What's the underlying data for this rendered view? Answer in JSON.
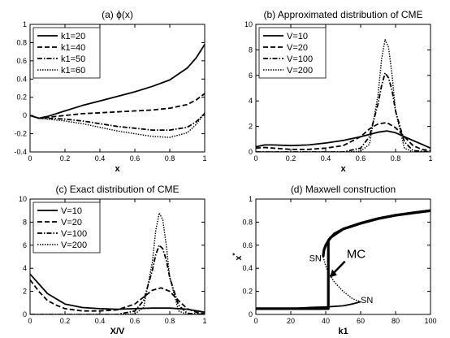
{
  "chart_data": [
    {
      "type": "line",
      "title": "(a)  ϕ(x)",
      "xlabel": "x",
      "ylabel": "",
      "xlim": [
        0,
        1
      ],
      "ylim": [
        -0.4,
        1
      ],
      "xticks": [
        "0",
        "0.2",
        "0.4",
        "0.6",
        "0.8",
        "1"
      ],
      "yticks": [
        "-0.4",
        "-0.2",
        "0",
        "0.2",
        "0.4",
        "0.6",
        "0.8",
        "1"
      ],
      "xtick_values": [
        0,
        0.2,
        0.4,
        0.6,
        0.8,
        1
      ],
      "ytick_values": [
        -0.4,
        -0.2,
        0,
        0.2,
        0.4,
        0.6,
        0.8,
        1
      ],
      "legend_position": "top-left",
      "series": [
        {
          "name": "k1=20",
          "style": "solid",
          "x": [
            0,
            0.05,
            0.1,
            0.2,
            0.3,
            0.4,
            0.5,
            0.6,
            0.7,
            0.8,
            0.9,
            0.95,
            1
          ],
          "y": [
            0,
            -0.03,
            -0.01,
            0.05,
            0.11,
            0.16,
            0.21,
            0.26,
            0.32,
            0.39,
            0.52,
            0.63,
            0.78
          ]
        },
        {
          "name": "k1=40",
          "style": "dashed",
          "x": [
            0,
            0.05,
            0.1,
            0.2,
            0.3,
            0.4,
            0.5,
            0.6,
            0.7,
            0.8,
            0.9,
            0.95,
            1
          ],
          "y": [
            0,
            -0.03,
            -0.02,
            0.0,
            0.02,
            0.03,
            0.04,
            0.05,
            0.06,
            0.08,
            0.12,
            0.17,
            0.24
          ]
        },
        {
          "name": "k1=50",
          "style": "dashdot",
          "x": [
            0,
            0.05,
            0.1,
            0.2,
            0.3,
            0.4,
            0.5,
            0.6,
            0.7,
            0.8,
            0.9,
            0.95,
            1
          ],
          "y": [
            0,
            -0.03,
            -0.03,
            -0.04,
            -0.06,
            -0.09,
            -0.12,
            -0.14,
            -0.16,
            -0.16,
            -0.13,
            -0.07,
            0.02
          ]
        },
        {
          "name": "k1=60",
          "style": "dotted",
          "x": [
            0,
            0.05,
            0.1,
            0.2,
            0.3,
            0.4,
            0.5,
            0.6,
            0.7,
            0.8,
            0.9,
            0.95,
            1
          ],
          "y": [
            0,
            -0.03,
            -0.04,
            -0.06,
            -0.09,
            -0.13,
            -0.17,
            -0.2,
            -0.23,
            -0.24,
            -0.19,
            -0.1,
            0.03
          ]
        }
      ]
    },
    {
      "type": "line",
      "title": "(b) Approximated distribution of CME",
      "xlabel": "x",
      "ylabel": "",
      "xlim": [
        0,
        1
      ],
      "ylim": [
        0,
        10
      ],
      "xticks": [
        "0",
        "0.2",
        "0.4",
        "0.6",
        "0.8",
        "1"
      ],
      "yticks": [
        "0",
        "2",
        "4",
        "6",
        "8",
        "10"
      ],
      "xtick_values": [
        0,
        0.2,
        0.4,
        0.6,
        0.8,
        1
      ],
      "ytick_values": [
        0,
        2,
        4,
        6,
        8,
        10
      ],
      "legend_position": "top-left",
      "series": [
        {
          "name": "V=10",
          "style": "solid",
          "x": [
            0,
            0.05,
            0.1,
            0.2,
            0.3,
            0.4,
            0.5,
            0.6,
            0.7,
            0.75,
            0.8,
            0.9,
            0.95,
            1
          ],
          "y": [
            0.4,
            0.55,
            0.55,
            0.5,
            0.55,
            0.7,
            0.9,
            1.2,
            1.55,
            1.65,
            1.5,
            0.9,
            0.6,
            0.3
          ]
        },
        {
          "name": "V=20",
          "style": "dashed",
          "x": [
            0,
            0.05,
            0.1,
            0.2,
            0.3,
            0.4,
            0.5,
            0.6,
            0.65,
            0.7,
            0.75,
            0.8,
            0.85,
            0.9,
            0.95,
            1
          ],
          "y": [
            0.3,
            0.35,
            0.3,
            0.2,
            0.2,
            0.3,
            0.5,
            1.2,
            1.8,
            2.2,
            2.3,
            1.9,
            1.2,
            0.5,
            0.2,
            0.1
          ]
        },
        {
          "name": "V=100",
          "style": "dashdot",
          "x": [
            0,
            0.1,
            0.2,
            0.3,
            0.4,
            0.5,
            0.6,
            0.65,
            0.7,
            0.72,
            0.74,
            0.76,
            0.78,
            0.8,
            0.85,
            0.9,
            1
          ],
          "y": [
            0,
            0,
            0,
            0,
            0,
            0,
            0.3,
            1.2,
            3.8,
            5.2,
            6.2,
            5.8,
            4.8,
            3.2,
            0.8,
            0.1,
            0
          ]
        },
        {
          "name": "V=200",
          "style": "dotted",
          "x": [
            0,
            0.1,
            0.2,
            0.3,
            0.4,
            0.5,
            0.6,
            0.65,
            0.7,
            0.72,
            0.74,
            0.76,
            0.78,
            0.8,
            0.85,
            0.9,
            1
          ],
          "y": [
            0,
            0,
            0,
            0,
            0,
            0,
            0.05,
            0.6,
            4.5,
            7.3,
            8.8,
            8.2,
            6.0,
            3.2,
            0.3,
            0,
            0
          ]
        }
      ]
    },
    {
      "type": "line",
      "title": "(c) Exact distribution of CME",
      "xlabel": "X/V",
      "ylabel": "",
      "xlim": [
        0,
        1
      ],
      "ylim": [
        0,
        10
      ],
      "xticks": [
        "0",
        "0.2",
        "0.4",
        "0.6",
        "0.8",
        "1"
      ],
      "yticks": [
        "0",
        "2",
        "4",
        "6",
        "8",
        "10"
      ],
      "xtick_values": [
        0,
        0.2,
        0.4,
        0.6,
        0.8,
        1
      ],
      "ytick_values": [
        0,
        2,
        4,
        6,
        8,
        10
      ],
      "legend_position": "top-left",
      "series": [
        {
          "name": "V=10",
          "style": "solid",
          "x": [
            0,
            0.1,
            0.2,
            0.3,
            0.4,
            0.5,
            0.6,
            0.7,
            0.8,
            0.9,
            1
          ],
          "y": [
            3.5,
            1.8,
            0.9,
            0.6,
            0.5,
            0.45,
            0.5,
            0.55,
            0.55,
            0.45,
            0.2
          ]
        },
        {
          "name": "V=20",
          "style": "dashed",
          "x": [
            0,
            0.05,
            0.1,
            0.15,
            0.2,
            0.25,
            0.3,
            0.4,
            0.5,
            0.6,
            0.65,
            0.7,
            0.75,
            0.8,
            0.85,
            0.9,
            0.95,
            1
          ],
          "y": [
            3.0,
            2.0,
            1.2,
            0.8,
            0.5,
            0.4,
            0.3,
            0.3,
            0.4,
            0.9,
            1.5,
            2.1,
            2.3,
            2.0,
            1.2,
            0.5,
            0.2,
            0.05
          ]
        },
        {
          "name": "V=100",
          "style": "dashdot",
          "x": [
            0,
            0.1,
            0.2,
            0.3,
            0.4,
            0.5,
            0.6,
            0.65,
            0.7,
            0.72,
            0.74,
            0.76,
            0.78,
            0.8,
            0.85,
            0.9,
            1
          ],
          "y": [
            0,
            0,
            0,
            0,
            0,
            0,
            0.3,
            1.2,
            3.8,
            5.2,
            6.0,
            5.7,
            4.7,
            3.2,
            0.8,
            0.1,
            0
          ]
        },
        {
          "name": "V=200",
          "style": "dotted",
          "x": [
            0,
            0.1,
            0.2,
            0.3,
            0.4,
            0.5,
            0.6,
            0.65,
            0.7,
            0.72,
            0.74,
            0.76,
            0.78,
            0.8,
            0.85,
            0.9,
            1
          ],
          "y": [
            0,
            0,
            0,
            0,
            0,
            0,
            0.05,
            0.6,
            4.5,
            7.3,
            8.8,
            8.2,
            6.0,
            3.2,
            0.3,
            0,
            0
          ]
        }
      ]
    },
    {
      "type": "line",
      "title": "(d) Maxwell construction",
      "xlabel": "k1",
      "ylabel": "x*",
      "xlim": [
        0,
        100
      ],
      "ylim": [
        0,
        1
      ],
      "xticks": [
        "0",
        "20",
        "40",
        "60",
        "80",
        "100"
      ],
      "yticks": [
        "0",
        "0.2",
        "0.4",
        "0.6",
        "0.8",
        "1"
      ],
      "xtick_values": [
        0,
        20,
        40,
        60,
        80,
        100
      ],
      "ytick_values": [
        0,
        0.2,
        0.4,
        0.6,
        0.8,
        1
      ],
      "annotations": [
        "SN",
        "SN",
        "MC"
      ],
      "series": [
        {
          "role": "upper-stable",
          "style": "thick-solid",
          "x": [
            38.5,
            39,
            40,
            42,
            45,
            50,
            60,
            70,
            80,
            90,
            100
          ],
          "y": [
            0.5,
            0.56,
            0.6,
            0.65,
            0.7,
            0.74,
            0.79,
            0.83,
            0.86,
            0.88,
            0.9
          ]
        },
        {
          "role": "unstable",
          "style": "dotted",
          "x": [
            38.5,
            40,
            42,
            45,
            50,
            55,
            58,
            60
          ],
          "y": [
            0.5,
            0.42,
            0.35,
            0.28,
            0.2,
            0.14,
            0.12,
            0.11
          ]
        },
        {
          "role": "lower-stable",
          "style": "solid",
          "x": [
            0,
            10,
            20,
            25,
            30,
            40,
            50,
            55,
            60
          ],
          "y": [
            0.05,
            0.05,
            0.05,
            0.055,
            0.06,
            0.065,
            0.075,
            0.09,
            0.11
          ]
        },
        {
          "role": "maxwell-jump",
          "style": "thick-solid",
          "x": [
            0,
            10,
            20,
            30,
            41.5,
            41.5,
            43,
            50,
            60,
            70,
            80,
            90,
            100
          ],
          "y": [
            0.05,
            0.05,
            0.05,
            0.05,
            0.05,
            0.64,
            0.67,
            0.74,
            0.79,
            0.83,
            0.86,
            0.88,
            0.9
          ]
        }
      ]
    }
  ]
}
